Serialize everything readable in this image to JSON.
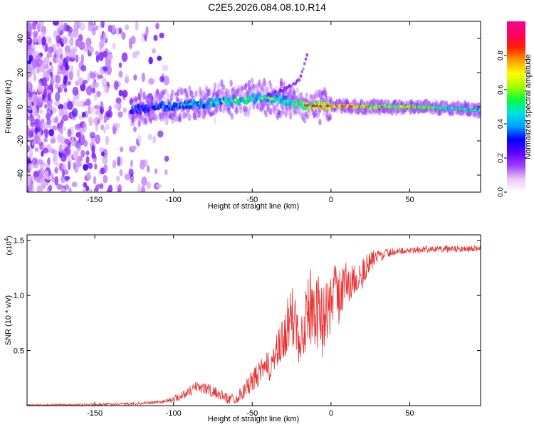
{
  "title": "C2E5.2026.084.08.10.R14",
  "chart_data": [
    {
      "type": "heatmap",
      "name": "spectrogram",
      "xlabel": "Height of straight line (km)",
      "ylabel": "Frequency (Hz)",
      "xlim": [
        -193,
        95
      ],
      "ylim": [
        -50,
        50
      ],
      "xticks": [
        -150,
        -100,
        -50,
        0,
        50
      ],
      "yticks": [
        -40,
        -20,
        0,
        20,
        40
      ],
      "ridge": {
        "description": "main spectral line (frequency vs height)",
        "x": [
          -125,
          -110,
          -100,
          -90,
          -80,
          -70,
          -60,
          -50,
          -40,
          -30,
          -25,
          -20,
          -10,
          0,
          20,
          50,
          80,
          93
        ],
        "y": [
          -2,
          0,
          0.5,
          1.5,
          2,
          3,
          4,
          5,
          5,
          4,
          2,
          1,
          0.5,
          0.5,
          0,
          0,
          -1,
          -2
        ],
        "amplitude": [
          0.25,
          0.3,
          0.35,
          0.4,
          0.45,
          0.5,
          0.55,
          0.55,
          0.55,
          0.5,
          0.6,
          0.7,
          0.85,
          0.9,
          0.85,
          0.7,
          0.6,
          0.5
        ]
      },
      "branch": {
        "description": "weak rising branch",
        "x": [
          -40,
          -35,
          -30,
          -25,
          -20,
          -15
        ],
        "y": [
          6,
          8,
          10,
          12,
          16,
          30
        ]
      },
      "colorbar": {
        "label": "Normalized spectral amplitude",
        "range": [
          0,
          1
        ],
        "ticks": [
          "0.0",
          "0.2",
          "0.4",
          "0.6",
          "0.8"
        ],
        "colors": [
          "#ffffff",
          "#e8c8f4",
          "#a040ff",
          "#6000ff",
          "#0000ff",
          "#00a0ff",
          "#00e0e0",
          "#00ff40",
          "#a0ff00",
          "#ffff00",
          "#ffa000",
          "#ff2000",
          "#ff0060",
          "#ff0090"
        ]
      }
    },
    {
      "type": "line",
      "name": "snr",
      "xlabel": "Height of straight line (km)",
      "ylabel": "SNR (10 * v/v)",
      "scale_label": "(x10",
      "scale_exponent": "4",
      "color": "#e83030",
      "xlim": [
        -193,
        95
      ],
      "ylim": [
        0,
        1.55
      ],
      "xticks": [
        -150,
        -100,
        -50,
        0,
        50
      ],
      "yticks": [
        0.5,
        1.0,
        1.5
      ],
      "ytick_labels": [
        "0.5",
        "1.0",
        "1.5"
      ],
      "envelope": {
        "x": [
          -193,
          -150,
          -120,
          -105,
          -100,
          -95,
          -90,
          -85,
          -80,
          -75,
          -70,
          -65,
          -60,
          -55,
          -50,
          -45,
          -40,
          -35,
          -30,
          -25,
          -20,
          -15,
          -10,
          -5,
          0,
          5,
          10,
          15,
          20,
          25,
          30,
          35,
          40,
          50,
          60,
          70,
          80,
          90,
          95
        ],
        "y": [
          0.005,
          0.01,
          0.02,
          0.04,
          0.06,
          0.09,
          0.13,
          0.18,
          0.16,
          0.12,
          0.1,
          0.06,
          0.07,
          0.14,
          0.22,
          0.3,
          0.35,
          0.45,
          0.6,
          0.8,
          0.7,
          0.85,
          0.9,
          0.75,
          0.95,
          1.05,
          1.1,
          1.15,
          1.2,
          1.3,
          1.36,
          1.38,
          1.4,
          1.41,
          1.42,
          1.42,
          1.42,
          1.43,
          1.43
        ]
      },
      "noise": {
        "x": [
          -193,
          -110,
          -100,
          -90,
          -80,
          -70,
          -60,
          -50,
          -40,
          -30,
          -20,
          -10,
          0,
          10,
          20,
          30,
          40,
          95
        ],
        "amp": [
          0.008,
          0.012,
          0.03,
          0.05,
          0.06,
          0.05,
          0.05,
          0.1,
          0.14,
          0.22,
          0.35,
          0.35,
          0.3,
          0.22,
          0.15,
          0.06,
          0.03,
          0.03
        ]
      }
    }
  ]
}
